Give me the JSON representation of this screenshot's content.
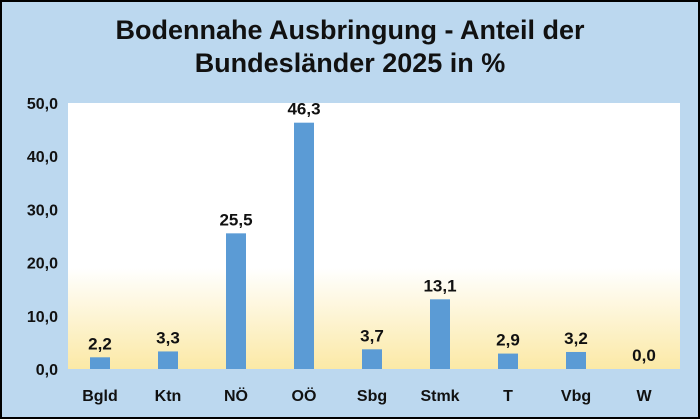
{
  "chart_data": {
    "type": "bar",
    "title_line1": "Bodennahe Ausbringung - Anteil der",
    "title_line2": "Bundesländer 2025 in %",
    "categories": [
      "Bgld",
      "Ktn",
      "NÖ",
      "OÖ",
      "Sbg",
      "Stmk",
      "T",
      "Vbg",
      "W"
    ],
    "values": [
      2.2,
      3.3,
      25.5,
      46.3,
      3.7,
      13.1,
      2.9,
      3.2,
      0.0
    ],
    "data_labels": [
      "2,2",
      "3,3",
      "25,5",
      "46,3",
      "3,7",
      "13,1",
      "2,9",
      "3,2",
      "0,0"
    ],
    "ylim": [
      0,
      50
    ],
    "yticks": [
      0,
      10,
      20,
      30,
      40,
      50
    ],
    "ytick_labels": [
      "0,0",
      "10,0",
      "20,0",
      "30,0",
      "40,0",
      "50,0"
    ],
    "grid": false,
    "legend": "none",
    "colors": {
      "bar": "#5b9bd5",
      "frame_bg": "#bcd8ef",
      "plot_top": "#ffffff",
      "plot_bottom": "#fbe9a6",
      "text": "#111111"
    }
  }
}
